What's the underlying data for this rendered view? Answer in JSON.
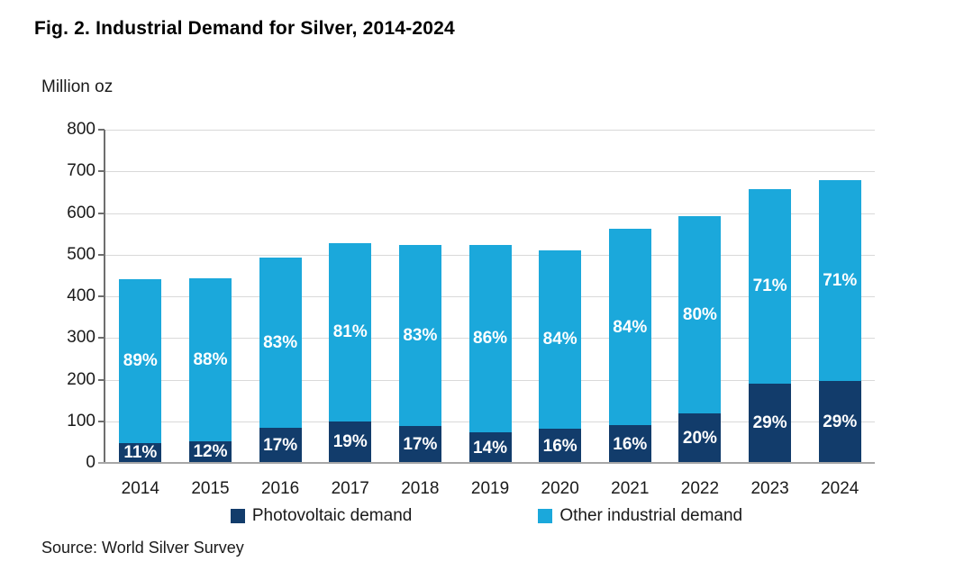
{
  "figure": {
    "title": "Fig. 2. Industrial Demand for Silver, 2014-2024",
    "units_label": "Million oz",
    "source": "Source: World Silver Survey"
  },
  "colors": {
    "photovoltaic": "#123c6b",
    "other_industrial": "#1ba8db",
    "gridline": "#d9d9d9",
    "axis_line": "#6e6e6e",
    "baseline": "#a6a6a6",
    "bar_label_text": "#ffffff"
  },
  "legend": {
    "items": [
      {
        "label": "Photovoltaic demand",
        "color": "#123c6b"
      },
      {
        "label": "Other industrial demand",
        "color": "#1ba8db"
      }
    ]
  },
  "chart_data": {
    "type": "bar",
    "stacked": true,
    "title": "Fig. 2. Industrial Demand for Silver, 2014-2024",
    "ylabel": "Million oz",
    "xlabel": "",
    "ylim": [
      0,
      800
    ],
    "ytick_step": 100,
    "grid": true,
    "legend_position": "bottom",
    "categories": [
      "2014",
      "2015",
      "2016",
      "2017",
      "2018",
      "2019",
      "2020",
      "2021",
      "2022",
      "2023",
      "2024"
    ],
    "series": [
      {
        "name": "Photovoltaic demand",
        "color": "#123c6b",
        "values": [
          48,
          53,
          84,
          100,
          89,
          73,
          82,
          90,
          118,
          191,
          197
        ],
        "labels": [
          "11%",
          "12%",
          "17%",
          "19%",
          "17%",
          "14%",
          "16%",
          "16%",
          "20%",
          "29%",
          "29%"
        ]
      },
      {
        "name": "Other industrial demand",
        "color": "#1ba8db",
        "values": [
          393,
          390,
          408,
          427,
          435,
          451,
          429,
          472,
          474,
          467,
          483
        ],
        "labels": [
          "89%",
          "88%",
          "83%",
          "81%",
          "83%",
          "86%",
          "84%",
          "84%",
          "80%",
          "71%",
          "71%"
        ]
      }
    ],
    "totals": [
      441,
      443,
      492,
      527,
      524,
      524,
      511,
      562,
      592,
      658,
      680
    ]
  }
}
